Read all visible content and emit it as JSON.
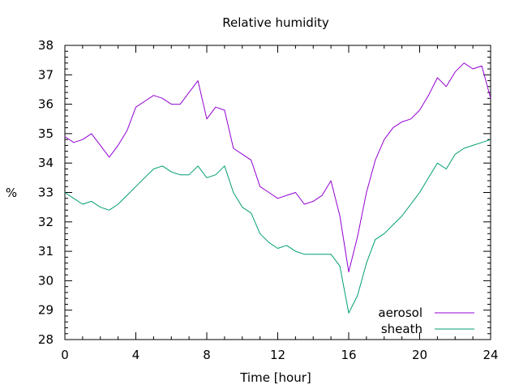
{
  "chart_data": {
    "type": "line",
    "title": "Relative humidity",
    "xlabel": "Time [hour]",
    "ylabel": "%",
    "xlim": [
      0,
      24
    ],
    "ylim": [
      28,
      38
    ],
    "xticks": [
      "0",
      "4",
      "8",
      "12",
      "16",
      "20",
      "24"
    ],
    "yticks": [
      "28",
      "29",
      "30",
      "31",
      "32",
      "33",
      "34",
      "35",
      "36",
      "37",
      "38"
    ],
    "grid": false,
    "legend_position": "bottom-right",
    "series": [
      {
        "name": "aerosol",
        "color": "#9400d3",
        "x": [
          0,
          0.5,
          1,
          1.5,
          2,
          2.5,
          3,
          3.5,
          4,
          4.5,
          5,
          5.5,
          6,
          6.5,
          7,
          7.5,
          8,
          8.5,
          9,
          9.5,
          10,
          10.5,
          11,
          11.5,
          12,
          12.5,
          13,
          13.5,
          14,
          14.5,
          15,
          15.5,
          16,
          16.5,
          17,
          17.5,
          18,
          18.5,
          19,
          19.5,
          20,
          20.5,
          21,
          21.5,
          22,
          22.5,
          23,
          23.5,
          24
        ],
        "y": [
          34.9,
          34.7,
          34.8,
          35.0,
          34.6,
          34.2,
          34.6,
          35.1,
          35.9,
          36.1,
          36.3,
          36.2,
          36.0,
          36.0,
          36.4,
          36.8,
          35.5,
          35.9,
          35.8,
          34.5,
          34.3,
          34.1,
          33.2,
          33.0,
          32.8,
          32.9,
          33.0,
          32.6,
          32.7,
          32.9,
          33.4,
          32.2,
          30.3,
          31.5,
          33.0,
          34.1,
          34.8,
          35.2,
          35.4,
          35.5,
          35.8,
          36.3,
          36.9,
          36.6,
          37.1,
          37.4,
          37.2,
          37.3,
          36.2
        ]
      },
      {
        "name": "sheath",
        "color": "#009e73",
        "x": [
          0,
          0.5,
          1,
          1.5,
          2,
          2.5,
          3,
          3.5,
          4,
          4.5,
          5,
          5.5,
          6,
          6.5,
          7,
          7.5,
          8,
          8.5,
          9,
          9.5,
          10,
          10.5,
          11,
          11.5,
          12,
          12.5,
          13,
          13.5,
          14,
          14.5,
          15,
          15.5,
          16,
          16.5,
          17,
          17.5,
          18,
          18.5,
          19,
          19.5,
          20,
          20.5,
          21,
          21.5,
          22,
          22.5,
          23,
          23.5,
          24
        ],
        "y": [
          33.0,
          32.8,
          32.6,
          32.7,
          32.5,
          32.4,
          32.6,
          32.9,
          33.2,
          33.5,
          33.8,
          33.9,
          33.7,
          33.6,
          33.6,
          33.9,
          33.5,
          33.6,
          33.9,
          33.0,
          32.5,
          32.3,
          31.6,
          31.3,
          31.1,
          31.2,
          31.0,
          30.9,
          30.9,
          30.9,
          30.9,
          30.5,
          28.9,
          29.5,
          30.6,
          31.4,
          31.6,
          31.9,
          32.2,
          32.6,
          33.0,
          33.5,
          34.0,
          33.8,
          34.3,
          34.5,
          34.6,
          34.7,
          34.8
        ]
      }
    ]
  }
}
